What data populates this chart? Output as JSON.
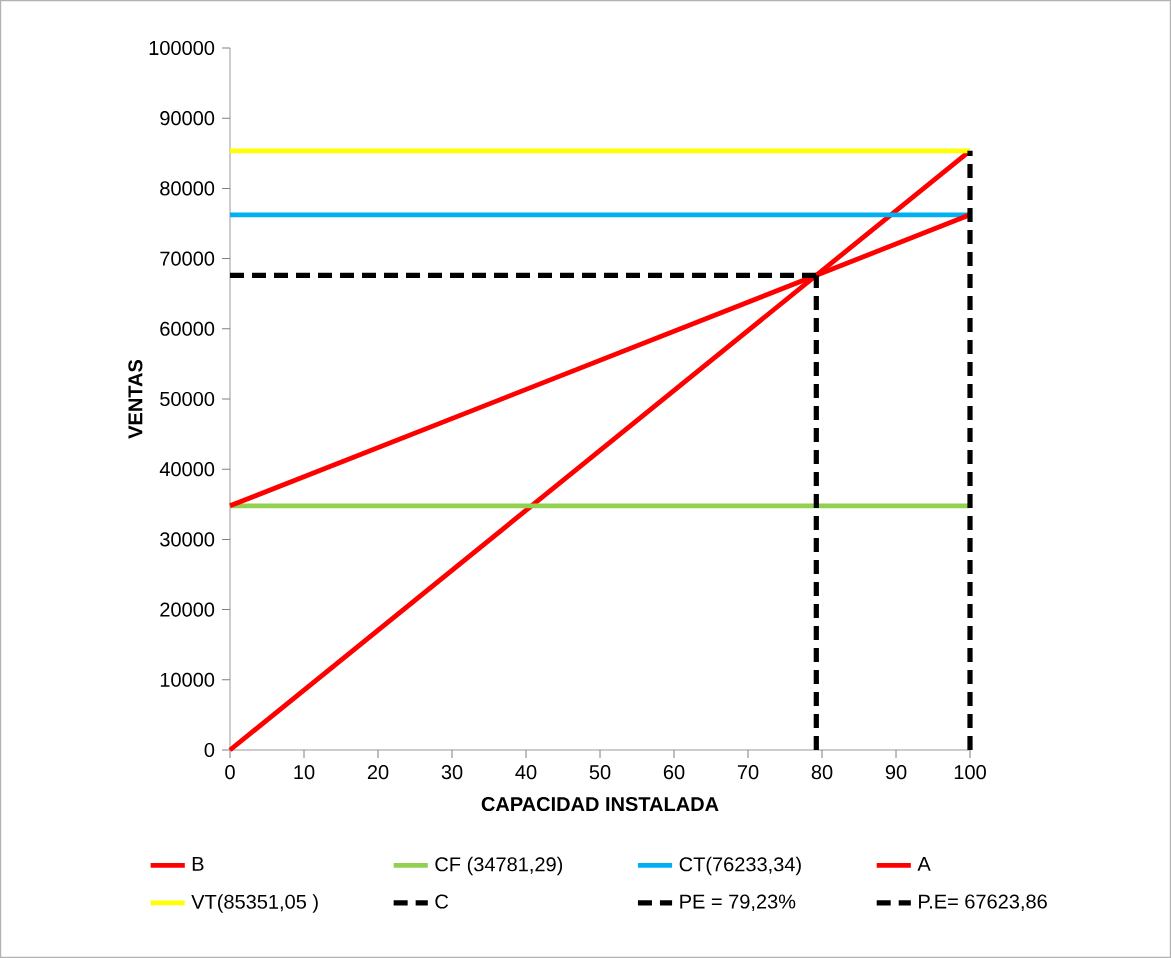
{
  "chart_data": {
    "type": "line",
    "xlabel": "CAPACIDAD INSTALADA",
    "ylabel": "VENTAS",
    "xlim": [
      0,
      100
    ],
    "ylim": [
      0,
      100000
    ],
    "xticks": [
      0,
      10,
      20,
      30,
      40,
      50,
      60,
      70,
      80,
      90,
      100
    ],
    "yticks": [
      0,
      10000,
      20000,
      30000,
      40000,
      50000,
      60000,
      70000,
      80000,
      90000,
      100000
    ],
    "legend": "bottom",
    "grid": false,
    "series": [
      {
        "name": "B",
        "color": "#ff0000",
        "x": [
          0,
          100
        ],
        "values": [
          0,
          85351.05
        ],
        "line_style": "solid"
      },
      {
        "name": "CF (34781,29)",
        "color": "#92d050",
        "x": [
          0,
          100
        ],
        "values": [
          34781.29,
          34781.29
        ],
        "line_style": "solid"
      },
      {
        "name": "CT(76233,34)",
        "color": "#00b0f0",
        "x": [
          0,
          100
        ],
        "values": [
          76233.34,
          76233.34
        ],
        "line_style": "solid"
      },
      {
        "name": "A",
        "color": "#ff0000",
        "x": [
          0,
          100
        ],
        "values": [
          34781.29,
          76233.34
        ],
        "line_style": "solid"
      },
      {
        "name": "VT(85351,05 )",
        "color": "#ffff00",
        "x": [
          0,
          100
        ],
        "values": [
          85351.05,
          85351.05
        ],
        "line_style": "solid"
      },
      {
        "name": "C",
        "color": "#000000",
        "x": [
          100,
          100
        ],
        "values": [
          0,
          85351.05
        ],
        "line_style": "dashed"
      },
      {
        "name": "PE = 79,23%",
        "color": "#000000",
        "x": [
          79.23,
          79.23
        ],
        "values": [
          0,
          67623.86
        ],
        "line_style": "dashed"
      },
      {
        "name": "P.E= 67623,86",
        "color": "#000000",
        "x": [
          0,
          79.23
        ],
        "values": [
          67623.86,
          67623.86
        ],
        "line_style": "dashed"
      }
    ]
  }
}
